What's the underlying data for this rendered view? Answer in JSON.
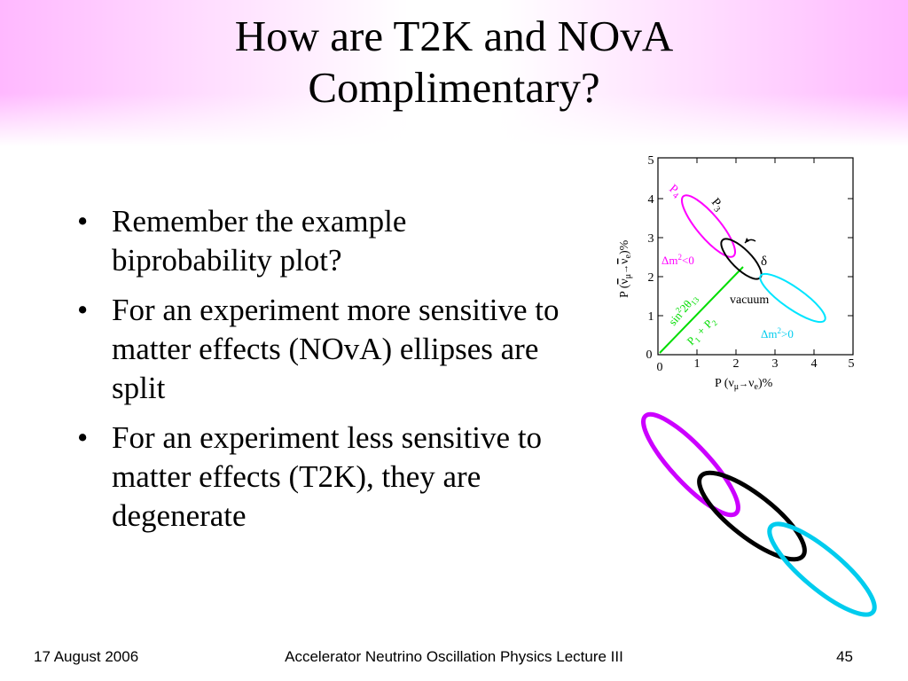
{
  "slide": {
    "title_line1": "How are T2K and NOvA",
    "title_line2": "Complimentary?",
    "bullets": [
      "Remember the example biprobability plot?",
      "For an experiment more sensitive to matter effects (NOvA) ellipses are split",
      "For an experiment less sensitive to matter effects (T2K), they are degenerate"
    ],
    "bullet_glyph": "•"
  },
  "plot": {
    "y_label_prefix": "P (",
    "y_label_nu": "ν",
    "y_label_mu": "μ",
    "y_label_arrow": "→",
    "y_label_e": "e",
    "y_label_suffix": ")%",
    "x_label_prefix": "P (",
    "x_label_nu": "ν",
    "x_label_mu": "μ",
    "x_label_arrow": "→",
    "x_label_e": "e",
    "x_label_suffix": ")%",
    "x_ticks": [
      "0",
      "1",
      "2",
      "3",
      "4",
      "5"
    ],
    "y_ticks": [
      "0",
      "1",
      "2",
      "3",
      "4",
      "5"
    ],
    "label_p4": "P",
    "label_p4_sub": "4",
    "label_p3": "P",
    "label_p3_sub": "3",
    "label_delta": "δ",
    "label_dm_neg_prefix": "Δm",
    "label_dm_neg_sup": "2",
    "label_dm_neg_suffix": "<0",
    "label_dm_pos_prefix": "Δm",
    "label_dm_pos_sup": "2",
    "label_dm_pos_suffix": ">0",
    "label_vacuum": "vacuum",
    "label_sin": "sin",
    "label_sin_sup": "2",
    "label_2theta": "2θ",
    "label_theta_sub": "13",
    "label_p1": "P",
    "label_p1_sub": "1",
    "label_plus": "+",
    "label_p2": "P",
    "label_p2_sub": "2",
    "colors": {
      "magenta": "#ff00ff",
      "cyan": "#00e5ff",
      "green": "#00dd00",
      "black": "#000000"
    }
  },
  "ellipses_figure": {
    "colors": {
      "top": "#cc00ff",
      "middle": "#000000",
      "bottom": "#00ccee"
    }
  },
  "footer": {
    "date": "17 August 2006",
    "center": "Accelerator Neutrino Oscillation Physics Lecture III",
    "page": "45"
  }
}
